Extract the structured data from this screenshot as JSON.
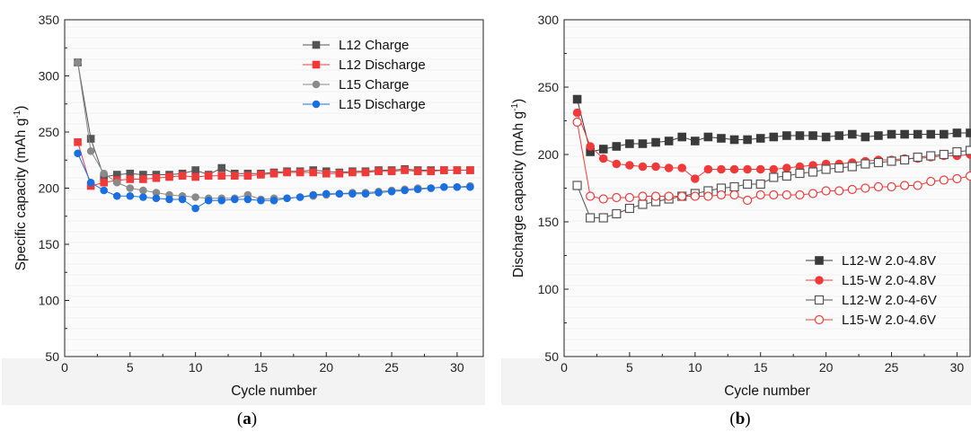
{
  "chart_data": [
    {
      "id": "a",
      "type": "line",
      "caption": "a",
      "xlabel": "Cycle number",
      "ylabel": "Specific capacity (mAh g",
      "ylabel_sup": "-1",
      "ylabel_close": ")",
      "xlim": [
        0,
        32
      ],
      "ylim": [
        50,
        350
      ],
      "xticks": [
        0,
        5,
        10,
        15,
        20,
        25,
        30
      ],
      "yticks": [
        50,
        100,
        150,
        200,
        250,
        300,
        350
      ],
      "legend_position": "top-right",
      "x": [
        1,
        2,
        3,
        4,
        5,
        6,
        7,
        8,
        9,
        10,
        11,
        12,
        13,
        14,
        15,
        16,
        17,
        18,
        19,
        20,
        21,
        22,
        23,
        24,
        25,
        26,
        27,
        28,
        29,
        30,
        31
      ],
      "series": [
        {
          "name": "L12 Charge",
          "color": "#555555",
          "marker": "square",
          "filled": true,
          "values": [
            312,
            244,
            210,
            212,
            213,
            212,
            212,
            212,
            213,
            216,
            212,
            218,
            213,
            213,
            213,
            214,
            215,
            215,
            216,
            215,
            214,
            215,
            215,
            216,
            216,
            217,
            216,
            216,
            216,
            216,
            216
          ]
        },
        {
          "name": "L12 Discharge",
          "color": "#f03a3a",
          "marker": "square",
          "filled": true,
          "values": [
            241,
            202,
            205,
            207,
            208,
            208,
            209,
            210,
            211,
            210,
            211,
            211,
            211,
            211,
            212,
            213,
            214,
            214,
            214,
            213,
            213,
            214,
            214,
            215,
            215,
            216,
            215,
            215,
            216,
            216,
            216
          ]
        },
        {
          "name": "L15 Charge",
          "color": "#8a8a8a",
          "marker": "circle",
          "filled": true,
          "values": [
            312,
            233,
            213,
            205,
            200,
            198,
            196,
            194,
            193,
            192,
            191,
            191,
            191,
            194,
            190,
            191,
            191,
            192,
            193,
            194,
            195,
            196,
            196,
            197,
            198,
            199,
            200,
            200,
            201,
            201,
            202
          ]
        },
        {
          "name": "L15 Discharge",
          "color": "#1a6fe0",
          "marker": "circle",
          "filled": true,
          "values": [
            231,
            205,
            198,
            193,
            193,
            192,
            191,
            190,
            190,
            182,
            189,
            189,
            190,
            190,
            189,
            189,
            191,
            192,
            194,
            195,
            195,
            195,
            195,
            196,
            197,
            198,
            199,
            200,
            201,
            201,
            201
          ]
        }
      ]
    },
    {
      "id": "b",
      "type": "line",
      "caption": "b",
      "xlabel": "Cycle number",
      "ylabel": "Discharge capacity (mAh g",
      "ylabel_sup": "-1",
      "ylabel_close": ")",
      "xlim": [
        0,
        31
      ],
      "ylim": [
        50,
        300
      ],
      "xticks": [
        0,
        5,
        10,
        15,
        20,
        25,
        30
      ],
      "yticks": [
        50,
        100,
        150,
        200,
        250,
        300
      ],
      "legend_position": "bottom-right",
      "x": [
        1,
        2,
        3,
        4,
        5,
        6,
        7,
        8,
        9,
        10,
        11,
        12,
        13,
        14,
        15,
        16,
        17,
        18,
        19,
        20,
        21,
        22,
        23,
        24,
        25,
        26,
        27,
        28,
        29,
        30,
        31
      ],
      "series": [
        {
          "name": "L12-W 2.0-4.8V",
          "color": "#3a3a3a",
          "marker": "square",
          "filled": true,
          "values": [
            241,
            202,
            204,
            206,
            208,
            208,
            209,
            210,
            213,
            210,
            213,
            212,
            211,
            211,
            212,
            213,
            214,
            214,
            214,
            213,
            214,
            215,
            213,
            214,
            215,
            215,
            215,
            215,
            215,
            216,
            216
          ]
        },
        {
          "name": "L15-W 2.0-4.8V",
          "color": "#f03a3a",
          "marker": "circle",
          "filled": true,
          "values": [
            231,
            206,
            197,
            193,
            192,
            191,
            191,
            190,
            190,
            182,
            189,
            189,
            189,
            189,
            189,
            189,
            190,
            191,
            192,
            193,
            193,
            194,
            195,
            196,
            196,
            197,
            197,
            198,
            199,
            199,
            200
          ]
        },
        {
          "name": "L12-W 2.0-4-6V",
          "color": "#555555",
          "marker": "square",
          "filled": false,
          "values": [
            177,
            153,
            153,
            156,
            160,
            163,
            165,
            167,
            169,
            171,
            173,
            175,
            176,
            178,
            178,
            183,
            184,
            186,
            187,
            189,
            190,
            191,
            193,
            194,
            195,
            196,
            198,
            199,
            200,
            202,
            203
          ]
        },
        {
          "name": "L15-W 2.0-4.6V",
          "color": "#f03a3a",
          "marker": "circle",
          "filled": false,
          "values": [
            224,
            169,
            167,
            168,
            168,
            169,
            169,
            169,
            169,
            169,
            169,
            170,
            170,
            166,
            170,
            170,
            170,
            170,
            171,
            173,
            173,
            174,
            175,
            176,
            176,
            177,
            177,
            180,
            181,
            182,
            184
          ]
        }
      ]
    }
  ]
}
